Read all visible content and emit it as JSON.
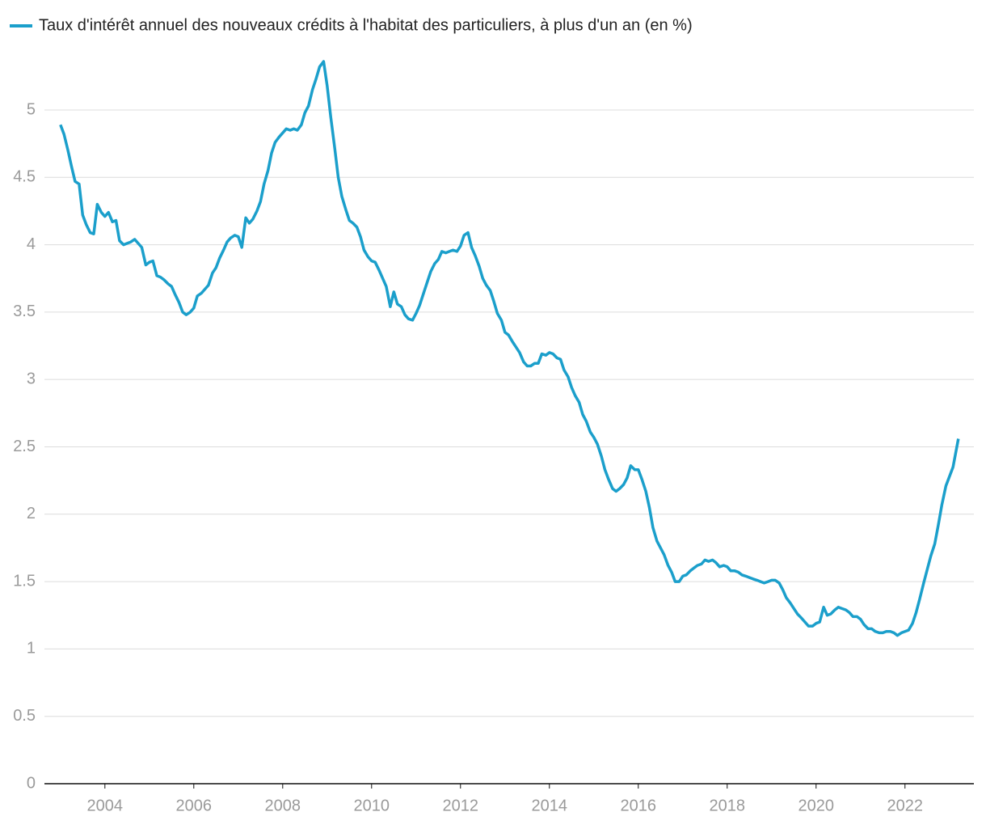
{
  "chart_data": {
    "type": "line",
    "series": [
      {
        "name": "Taux d'intérêt annuel des nouveaux crédits à l'habitat des particuliers, à plus d'un an (en %)",
        "color": "#1b9fcb",
        "values": [
          4.89,
          4.82,
          4.7,
          4.58,
          4.47,
          4.45,
          4.22,
          4.15,
          4.09,
          4.08,
          4.3,
          4.24,
          4.21,
          4.24,
          4.17,
          4.18,
          4.03,
          4.0,
          4.01,
          4.02,
          4.04,
          4.01,
          3.98,
          3.85,
          3.87,
          3.88,
          3.77,
          3.76,
          3.74,
          3.71,
          3.69,
          3.63,
          3.57,
          3.5,
          3.48,
          3.5,
          3.53,
          3.62,
          3.64,
          3.67,
          3.7,
          3.79,
          3.83,
          3.9,
          3.96,
          4.02,
          4.05,
          4.07,
          4.06,
          3.98,
          4.2,
          4.16,
          4.19,
          4.25,
          4.32,
          4.45,
          4.55,
          4.68,
          4.76,
          4.8,
          4.83,
          4.86,
          4.85,
          4.86,
          4.85,
          4.89,
          4.98,
          5.03,
          5.15,
          5.23,
          5.32,
          5.36,
          5.18,
          4.95,
          4.72,
          4.5,
          4.36,
          4.26,
          4.18,
          4.16,
          4.13,
          4.06,
          3.96,
          3.91,
          3.88,
          3.87,
          3.81,
          3.75,
          3.69,
          3.54,
          3.65,
          3.56,
          3.54,
          3.48,
          3.45,
          3.44,
          3.49,
          3.55,
          3.64,
          3.72,
          3.8,
          3.86,
          3.89,
          3.95,
          3.94,
          3.95,
          3.96,
          3.95,
          3.99,
          4.07,
          4.09,
          3.98,
          3.92,
          3.84,
          3.75,
          3.7,
          3.66,
          3.58,
          3.49,
          3.44,
          3.35,
          3.33,
          3.28,
          3.24,
          3.2,
          3.13,
          3.1,
          3.1,
          3.12,
          3.12,
          3.19,
          3.18,
          3.2,
          3.19,
          3.16,
          3.15,
          3.07,
          3.02,
          2.94,
          2.88,
          2.83,
          2.74,
          2.69,
          2.61,
          2.57,
          2.52,
          2.43,
          2.33,
          2.26,
          2.19,
          2.17,
          2.19,
          2.22,
          2.27,
          2.36,
          2.33,
          2.33,
          2.26,
          2.17,
          2.05,
          1.9,
          1.8,
          1.75,
          1.7,
          1.62,
          1.57,
          1.5,
          1.5,
          1.54,
          1.55,
          1.58,
          1.6,
          1.62,
          1.63,
          1.66,
          1.65,
          1.66,
          1.64,
          1.61,
          1.62,
          1.61,
          1.58,
          1.58,
          1.57,
          1.55,
          1.54,
          1.53,
          1.52,
          1.51,
          1.5,
          1.49,
          1.5,
          1.51,
          1.51,
          1.49,
          1.44,
          1.38,
          1.34,
          1.3,
          1.26,
          1.23,
          1.2,
          1.17,
          1.17,
          1.19,
          1.2,
          1.31,
          1.25,
          1.26,
          1.29,
          1.31,
          1.3,
          1.29,
          1.27,
          1.24,
          1.24,
          1.22,
          1.18,
          1.15,
          1.15,
          1.13,
          1.12,
          1.12,
          1.13,
          1.13,
          1.12,
          1.1,
          1.12,
          1.13,
          1.14,
          1.19,
          1.27,
          1.37,
          1.49,
          1.59,
          1.69,
          1.78,
          1.92,
          2.07,
          2.21,
          2.35,
          2.56
        ]
      }
    ],
    "x": [
      2003.0,
      2003.08,
      2003.17,
      2003.25,
      2003.33,
      2003.42,
      2003.5,
      2003.58,
      2003.67,
      2003.75,
      2003.83,
      2003.92,
      2004.0,
      2004.08,
      2004.17,
      2004.25,
      2004.33,
      2004.42,
      2004.5,
      2004.58,
      2004.67,
      2004.75,
      2004.83,
      2004.92,
      2005.0,
      2005.08,
      2005.17,
      2005.25,
      2005.33,
      2005.42,
      2005.5,
      2005.58,
      2005.67,
      2005.75,
      2005.83,
      2005.92,
      2006.0,
      2006.08,
      2006.17,
      2006.25,
      2006.33,
      2006.42,
      2006.5,
      2006.58,
      2006.67,
      2006.75,
      2006.83,
      2006.92,
      2007.0,
      2007.08,
      2007.17,
      2007.25,
      2007.33,
      2007.42,
      2007.5,
      2007.58,
      2007.67,
      2007.75,
      2007.83,
      2007.92,
      2008.0,
      2008.08,
      2008.17,
      2008.25,
      2008.33,
      2008.42,
      2008.5,
      2008.58,
      2008.67,
      2008.75,
      2008.83,
      2008.92,
      2009.0,
      2009.08,
      2009.17,
      2009.25,
      2009.33,
      2009.42,
      2009.5,
      2009.58,
      2009.67,
      2009.75,
      2009.83,
      2009.92,
      2010.0,
      2010.08,
      2010.17,
      2010.25,
      2010.33,
      2010.42,
      2010.5,
      2010.58,
      2010.67,
      2010.75,
      2010.83,
      2010.92,
      2011.0,
      2011.08,
      2011.17,
      2011.25,
      2011.33,
      2011.42,
      2011.5,
      2011.58,
      2011.67,
      2011.75,
      2011.83,
      2011.92,
      2012.0,
      2012.08,
      2012.17,
      2012.25,
      2012.33,
      2012.42,
      2012.5,
      2012.58,
      2012.67,
      2012.75,
      2012.83,
      2012.92,
      2013.0,
      2013.08,
      2013.17,
      2013.25,
      2013.33,
      2013.42,
      2013.5,
      2013.58,
      2013.67,
      2013.75,
      2013.83,
      2013.92,
      2014.0,
      2014.08,
      2014.17,
      2014.25,
      2014.33,
      2014.42,
      2014.5,
      2014.58,
      2014.67,
      2014.75,
      2014.83,
      2014.92,
      2015.0,
      2015.08,
      2015.17,
      2015.25,
      2015.33,
      2015.42,
      2015.5,
      2015.58,
      2015.67,
      2015.75,
      2015.83,
      2015.92,
      2016.0,
      2016.08,
      2016.17,
      2016.25,
      2016.33,
      2016.42,
      2016.5,
      2016.58,
      2016.67,
      2016.75,
      2016.83,
      2016.92,
      2017.0,
      2017.08,
      2017.17,
      2017.25,
      2017.33,
      2017.42,
      2017.5,
      2017.58,
      2017.67,
      2017.75,
      2017.83,
      2017.92,
      2018.0,
      2018.08,
      2018.17,
      2018.25,
      2018.33,
      2018.42,
      2018.5,
      2018.58,
      2018.67,
      2018.75,
      2018.83,
      2018.92,
      2019.0,
      2019.08,
      2019.17,
      2019.25,
      2019.33,
      2019.42,
      2019.5,
      2019.58,
      2019.67,
      2019.75,
      2019.83,
      2019.92,
      2020.0,
      2020.08,
      2020.17,
      2020.25,
      2020.33,
      2020.42,
      2020.5,
      2020.58,
      2020.67,
      2020.75,
      2020.83,
      2020.92,
      2021.0,
      2021.08,
      2021.17,
      2021.25,
      2021.33,
      2021.42,
      2021.5,
      2021.58,
      2021.67,
      2021.75,
      2021.83,
      2021.92,
      2022.0,
      2022.08,
      2022.17,
      2022.25,
      2022.33,
      2022.42,
      2022.5,
      2022.58,
      2022.67,
      2022.75,
      2022.83,
      2022.92,
      2023.08,
      2023.2
    ],
    "xlim": [
      2002.64,
      2023.55
    ],
    "xticks": [
      2004,
      2006,
      2008,
      2010,
      2012,
      2014,
      2016,
      2018,
      2020,
      2022
    ],
    "ylim": [
      0,
      5.45
    ],
    "yticks": [
      0,
      0.5,
      1,
      1.5,
      2,
      2.5,
      3,
      3.5,
      4,
      4.5,
      5
    ],
    "grid": true,
    "legend": "top-left"
  }
}
